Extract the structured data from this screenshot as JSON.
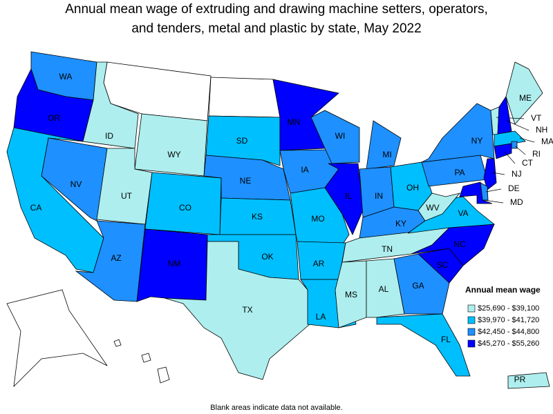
{
  "title": [
    "Annual mean wage of extruding and drawing machine setters, operators,",
    "and tenders, metal and plastic by state, May 2022"
  ],
  "legend": {
    "title": "Annual mean wage",
    "items": [
      {
        "label": "$25,690 - $39,100",
        "color": "#aeeeee"
      },
      {
        "label": "$39,970 - $41,720",
        "color": "#00bfff"
      },
      {
        "label": "$42,450 - $44,800",
        "color": "#1e90ff"
      },
      {
        "label": "$45,270 - $55,260",
        "color": "#0000ff"
      }
    ]
  },
  "states": [
    {
      "label": "WA",
      "color": "#1e90ff"
    },
    {
      "label": "OR",
      "color": "#0000ff"
    },
    {
      "label": "CA",
      "color": "#00bfff"
    },
    {
      "label": "ID",
      "color": "#aeeeee"
    },
    {
      "label": "NV",
      "color": "#1e90ff"
    },
    {
      "label": "WY",
      "color": "#aeeeee"
    },
    {
      "label": "UT",
      "color": "#aeeeee"
    },
    {
      "label": "AZ",
      "color": "#1e90ff"
    },
    {
      "label": "CO",
      "color": "#00bfff"
    },
    {
      "label": "NM",
      "color": "#0000ff"
    },
    {
      "label": "SD",
      "color": "#00bfff"
    },
    {
      "label": "NE",
      "color": "#1e90ff"
    },
    {
      "label": "KS",
      "color": "#00bfff"
    },
    {
      "label": "OK",
      "color": "#00bfff"
    },
    {
      "label": "TX",
      "color": "#aeeeee"
    },
    {
      "label": "MN",
      "color": "#0000ff"
    },
    {
      "label": "IA",
      "color": "#1e90ff"
    },
    {
      "label": "MO",
      "color": "#00bfff"
    },
    {
      "label": "AR",
      "color": "#00bfff"
    },
    {
      "label": "LA",
      "color": "#00bfff"
    },
    {
      "label": "WI",
      "color": "#1e90ff"
    },
    {
      "label": "IL",
      "color": "#0000ff"
    },
    {
      "label": "MI",
      "color": "#1e90ff"
    },
    {
      "label": "IN",
      "color": "#1e90ff"
    },
    {
      "label": "OH",
      "color": "#00bfff"
    },
    {
      "label": "KY",
      "color": "#1e90ff"
    },
    {
      "label": "TN",
      "color": "#aeeeee"
    },
    {
      "label": "MS",
      "color": "#aeeeee"
    },
    {
      "label": "AL",
      "color": "#aeeeee"
    },
    {
      "label": "GA",
      "color": "#1e90ff"
    },
    {
      "label": "FL",
      "color": "#00bfff"
    },
    {
      "label": "SC",
      "color": "#0000ff"
    },
    {
      "label": "NC",
      "color": "#0000ff"
    },
    {
      "label": "VA",
      "color": "#00bfff"
    },
    {
      "label": "WV",
      "color": "#aeeeee"
    },
    {
      "label": "PA",
      "color": "#1e90ff"
    },
    {
      "label": "NY",
      "color": "#1e90ff"
    },
    {
      "label": "ME",
      "color": "#aeeeee"
    },
    {
      "label": "VT",
      "color": "#aeeeee"
    },
    {
      "label": "NH",
      "color": "#0000ff"
    },
    {
      "label": "MA",
      "color": "#00bfff"
    },
    {
      "label": "RI",
      "color": "#1e90ff"
    },
    {
      "label": "CT",
      "color": "#0000ff"
    },
    {
      "label": "NJ",
      "color": "#0000ff"
    },
    {
      "label": "DE",
      "color": "#1e90ff"
    },
    {
      "label": "MD",
      "color": "#0000ff"
    },
    {
      "label": "PR",
      "color": "#aeeeee"
    }
  ],
  "note": "Blank areas indicate data not available."
}
